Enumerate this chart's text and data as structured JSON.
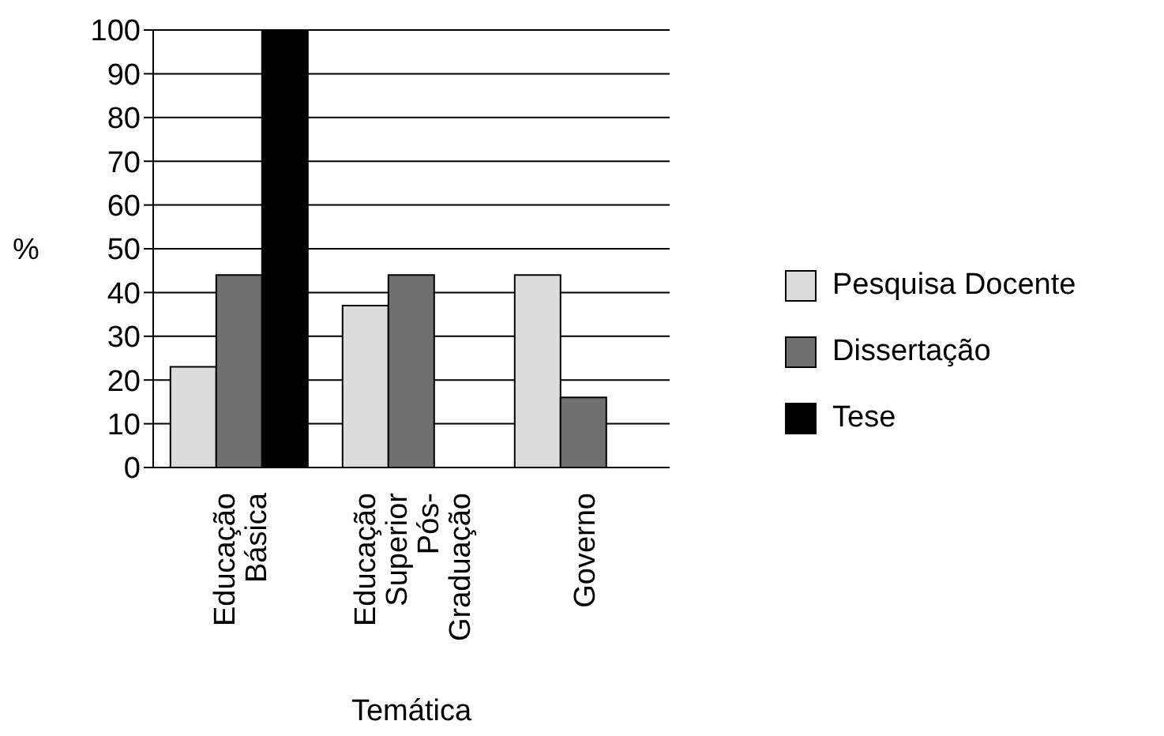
{
  "chart_data": {
    "type": "bar",
    "xlabel": "Temática",
    "ylabel": "%",
    "categories": [
      "Educação Básica",
      "Educação Superior Pós-Graduação",
      "Governo"
    ],
    "series": [
      {
        "name": "Pesquisa Docente",
        "color": "#dcdcdc",
        "values": [
          23,
          37,
          44
        ]
      },
      {
        "name": "Dissertação",
        "color": "#707070",
        "values": [
          44,
          44,
          16
        ]
      },
      {
        "name": "Tese",
        "color": "#000000",
        "values": [
          100,
          null,
          null
        ]
      }
    ],
    "ylim": [
      0,
      100
    ],
    "yticks": [
      0,
      10,
      20,
      30,
      40,
      50,
      60,
      70,
      80,
      90,
      100
    ],
    "grid": "y",
    "legend": "right"
  }
}
